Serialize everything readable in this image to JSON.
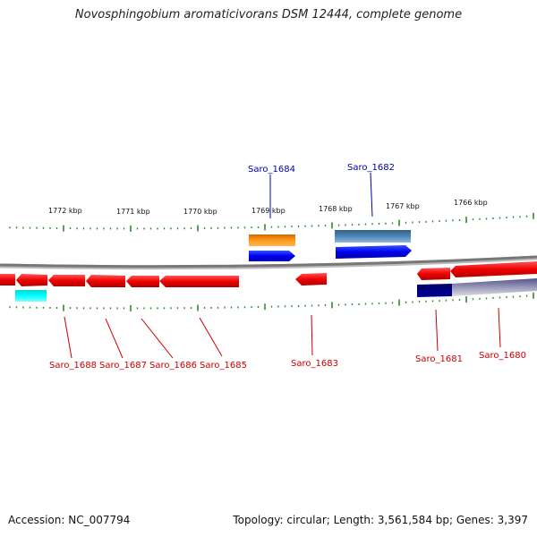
{
  "title": "Novosphingobium aromaticivorans DSM 12444, complete genome",
  "footer": {
    "accession": "Accession: NC_007794",
    "summary": "Topology: circular; Length: 3,561,584 bp; Genes: 3,397"
  },
  "scale_labels": [
    "1772 kbp",
    "1771 kbp",
    "1770 kbp",
    "1769 kbp",
    "1768 kbp",
    "1767 kbp",
    "1766 kbp"
  ],
  "colors": {
    "forward_gene": "#0000ee",
    "reverse_gene": "#ee0000",
    "tick": "#2e8b2e",
    "backbone": "#888888",
    "forward_label": "#0000aa",
    "reverse_label": "#cc0000"
  },
  "gene_labels": {
    "top": [
      "Saro_1684",
      "Saro_1682"
    ],
    "bottom": [
      "Saro_1688",
      "Saro_1687",
      "Saro_1686",
      "Saro_1685",
      "Saro_1683",
      "Saro_1681",
      "Saro_1680"
    ]
  }
}
